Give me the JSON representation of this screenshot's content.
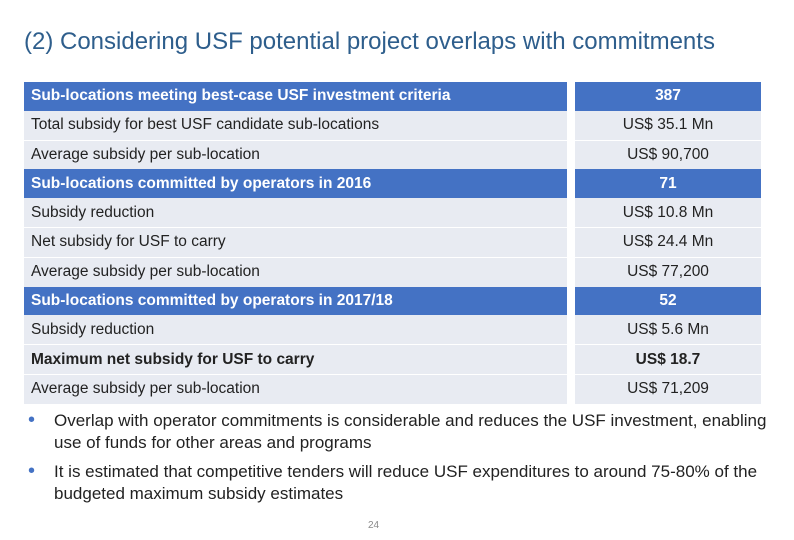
{
  "slide": {
    "title": "(2) Considering USF potential project overlaps with commitments",
    "page_number": "24"
  },
  "table": {
    "rows": [
      {
        "label": "Sub-locations meeting best-case USF investment criteria",
        "value": "387",
        "style": "highlight"
      },
      {
        "label": "Total subsidy for best USF candidate sub-locations",
        "value": "US$ 35.1 Mn",
        "style": "plain"
      },
      {
        "label": "Average subsidy per sub-location",
        "value": "US$ 90,700",
        "style": "plain"
      },
      {
        "label": "Sub-locations committed by operators in 2016",
        "value": "71",
        "style": "highlight"
      },
      {
        "label": "Subsidy reduction",
        "value": "US$ 10.8 Mn",
        "style": "plain"
      },
      {
        "label": "Net subsidy for USF to carry",
        "value": "US$ 24.4 Mn",
        "style": "plain"
      },
      {
        "label": "Average subsidy per sub-location",
        "value": "US$ 77,200",
        "style": "plain"
      },
      {
        "label": "Sub-locations committed by operators in 2017/18",
        "value": "52",
        "style": "highlight"
      },
      {
        "label": "Subsidy reduction",
        "value": "US$ 5.6 Mn",
        "style": "plain"
      },
      {
        "label": "Maximum net subsidy for USF to carry",
        "value": "US$ 18.7",
        "style": "bold"
      },
      {
        "label": "Average subsidy per sub-location",
        "value": "US$ 71,209",
        "style": "plain"
      }
    ]
  },
  "bullets": [
    "Overlap with operator commitments is considerable and reduces the USF investment, enabling use of funds for other areas and programs",
    "It is estimated that competitive tenders will reduce USF expenditures to around 75-80% of the budgeted maximum subsidy estimates"
  ],
  "colors": {
    "title": "#2e5e8c",
    "highlight_row": "#4472c4",
    "plain_row": "#e8ebf2"
  }
}
